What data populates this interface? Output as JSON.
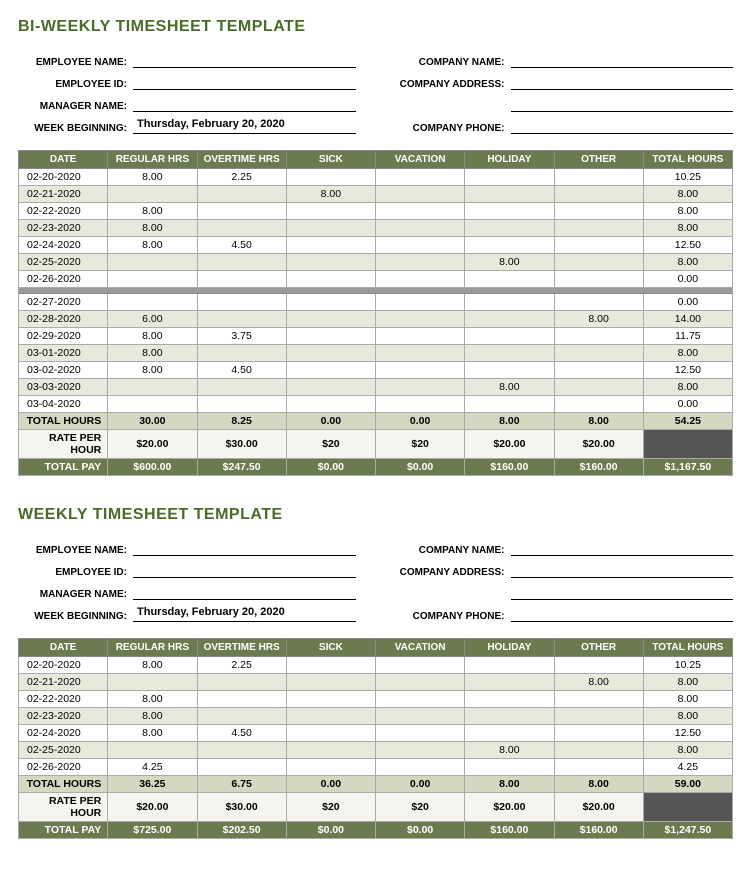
{
  "colors": {
    "title": "#4a6b2a",
    "header_bg": "#6b7a4f",
    "header_fg": "#ffffff",
    "alt_row": "#e8e8dc",
    "total_hours_bg": "#d4d8c0",
    "rate_bg": "#f5f5f0",
    "total_pay_bg": "#6b7a4f",
    "dark_cell": "#555555",
    "gap_bg": "#9a9a9a"
  },
  "biweekly": {
    "title": "BI-WEEKLY TIMESHEET TEMPLATE",
    "meta_labels": {
      "employee_name": "EMPLOYEE NAME:",
      "employee_id": "EMPLOYEE ID:",
      "manager_name": "MANAGER NAME:",
      "week_beginning": "WEEK BEGINNING:",
      "company_name": "COMPANY NAME:",
      "company_address": "COMPANY ADDRESS:",
      "company_phone": "COMPANY PHONE:"
    },
    "week_beginning_value": "Thursday, February 20, 2020",
    "columns": [
      "DATE",
      "REGULAR HRS",
      "OVERTIME HRS",
      "SICK",
      "VACATION",
      "HOLIDAY",
      "OTHER",
      "TOTAL HOURS"
    ],
    "rows1": [
      {
        "date": "02-20-2020",
        "reg": "8.00",
        "ot": "2.25",
        "sick": "",
        "vac": "",
        "hol": "",
        "oth": "",
        "tot": "10.25",
        "alt": false
      },
      {
        "date": "02-21-2020",
        "reg": "",
        "ot": "",
        "sick": "8.00",
        "vac": "",
        "hol": "",
        "oth": "",
        "tot": "8.00",
        "alt": true
      },
      {
        "date": "02-22-2020",
        "reg": "8.00",
        "ot": "",
        "sick": "",
        "vac": "",
        "hol": "",
        "oth": "",
        "tot": "8.00",
        "alt": false
      },
      {
        "date": "02-23-2020",
        "reg": "8.00",
        "ot": "",
        "sick": "",
        "vac": "",
        "hol": "",
        "oth": "",
        "tot": "8.00",
        "alt": true
      },
      {
        "date": "02-24-2020",
        "reg": "8.00",
        "ot": "4.50",
        "sick": "",
        "vac": "",
        "hol": "",
        "oth": "",
        "tot": "12.50",
        "alt": false
      },
      {
        "date": "02-25-2020",
        "reg": "",
        "ot": "",
        "sick": "",
        "vac": "",
        "hol": "8.00",
        "oth": "",
        "tot": "8.00",
        "alt": true
      },
      {
        "date": "02-26-2020",
        "reg": "",
        "ot": "",
        "sick": "",
        "vac": "",
        "hol": "",
        "oth": "",
        "tot": "0.00",
        "alt": false
      }
    ],
    "rows2": [
      {
        "date": "02-27-2020",
        "reg": "",
        "ot": "",
        "sick": "",
        "vac": "",
        "hol": "",
        "oth": "",
        "tot": "0.00",
        "alt": false
      },
      {
        "date": "02-28-2020",
        "reg": "6.00",
        "ot": "",
        "sick": "",
        "vac": "",
        "hol": "",
        "oth": "8.00",
        "tot": "14.00",
        "alt": true
      },
      {
        "date": "02-29-2020",
        "reg": "8.00",
        "ot": "3.75",
        "sick": "",
        "vac": "",
        "hol": "",
        "oth": "",
        "tot": "11.75",
        "alt": false
      },
      {
        "date": "03-01-2020",
        "reg": "8.00",
        "ot": "",
        "sick": "",
        "vac": "",
        "hol": "",
        "oth": "",
        "tot": "8.00",
        "alt": true
      },
      {
        "date": "03-02-2020",
        "reg": "8.00",
        "ot": "4.50",
        "sick": "",
        "vac": "",
        "hol": "",
        "oth": "",
        "tot": "12.50",
        "alt": false
      },
      {
        "date": "03-03-2020",
        "reg": "",
        "ot": "",
        "sick": "",
        "vac": "",
        "hol": "8.00",
        "oth": "",
        "tot": "8.00",
        "alt": true
      },
      {
        "date": "03-04-2020",
        "reg": "",
        "ot": "",
        "sick": "",
        "vac": "",
        "hol": "",
        "oth": "",
        "tot": "0.00",
        "alt": false
      }
    ],
    "footer": {
      "total_hours": {
        "label": "TOTAL HOURS",
        "reg": "30.00",
        "ot": "8.25",
        "sick": "0.00",
        "vac": "0.00",
        "hol": "8.00",
        "oth": "8.00",
        "tot": "54.25"
      },
      "rate": {
        "label": "RATE PER HOUR",
        "reg": "$20.00",
        "ot": "$30.00",
        "sick": "$20",
        "vac": "$20",
        "hol": "$20.00",
        "oth": "$20.00",
        "tot": ""
      },
      "total_pay": {
        "label": "TOTAL PAY",
        "reg": "$600.00",
        "ot": "$247.50",
        "sick": "$0.00",
        "vac": "$0.00",
        "hol": "$160.00",
        "oth": "$160.00",
        "tot": "$1,167.50"
      }
    }
  },
  "weekly": {
    "title": "WEEKLY TIMESHEET TEMPLATE",
    "week_beginning_value": "Thursday, February 20, 2020",
    "rows": [
      {
        "date": "02-20-2020",
        "reg": "8.00",
        "ot": "2.25",
        "sick": "",
        "vac": "",
        "hol": "",
        "oth": "",
        "tot": "10.25",
        "alt": false
      },
      {
        "date": "02-21-2020",
        "reg": "",
        "ot": "",
        "sick": "",
        "vac": "",
        "hol": "",
        "oth": "8.00",
        "tot": "8.00",
        "alt": true
      },
      {
        "date": "02-22-2020",
        "reg": "8.00",
        "ot": "",
        "sick": "",
        "vac": "",
        "hol": "",
        "oth": "",
        "tot": "8.00",
        "alt": false
      },
      {
        "date": "02-23-2020",
        "reg": "8.00",
        "ot": "",
        "sick": "",
        "vac": "",
        "hol": "",
        "oth": "",
        "tot": "8.00",
        "alt": true
      },
      {
        "date": "02-24-2020",
        "reg": "8.00",
        "ot": "4.50",
        "sick": "",
        "vac": "",
        "hol": "",
        "oth": "",
        "tot": "12.50",
        "alt": false
      },
      {
        "date": "02-25-2020",
        "reg": "",
        "ot": "",
        "sick": "",
        "vac": "",
        "hol": "8.00",
        "oth": "",
        "tot": "8.00",
        "alt": true
      },
      {
        "date": "02-26-2020",
        "reg": "4.25",
        "ot": "",
        "sick": "",
        "vac": "",
        "hol": "",
        "oth": "",
        "tot": "4.25",
        "alt": false
      }
    ],
    "footer": {
      "total_hours": {
        "label": "TOTAL HOURS",
        "reg": "36.25",
        "ot": "6.75",
        "sick": "0.00",
        "vac": "0.00",
        "hol": "8.00",
        "oth": "8.00",
        "tot": "59.00"
      },
      "rate": {
        "label": "RATE PER HOUR",
        "reg": "$20.00",
        "ot": "$30.00",
        "sick": "$20",
        "vac": "$20",
        "hol": "$20.00",
        "oth": "$20.00",
        "tot": ""
      },
      "total_pay": {
        "label": "TOTAL PAY",
        "reg": "$725.00",
        "ot": "$202.50",
        "sick": "$0.00",
        "vac": "$0.00",
        "hol": "$160.00",
        "oth": "$160.00",
        "tot": "$1,247.50"
      }
    }
  }
}
